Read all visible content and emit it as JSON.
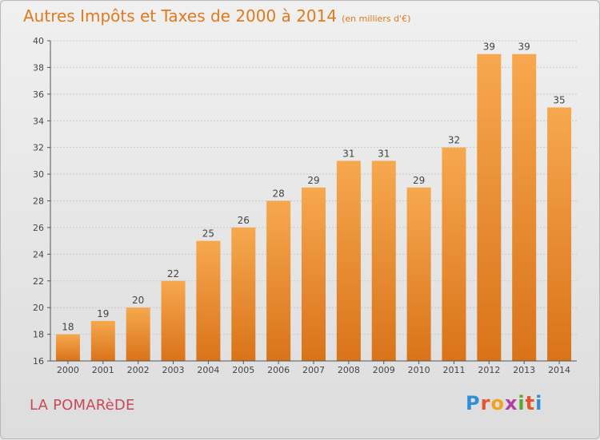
{
  "header": {
    "title": "Autres Impôts et Taxes de 2000 à 2014",
    "unit": "(en milliers d'€)"
  },
  "footer": {
    "city": "LA POMARèDE",
    "logo_text": "Proxiti"
  },
  "colors": {
    "bar_light": "#f7a84e",
    "bar_dark": "#d9731a",
    "title": "#e07a1c",
    "city": "#c84a5a"
  },
  "chart_data": {
    "type": "bar",
    "title": "Autres Impôts et Taxes de 2000 à 2014",
    "xlabel": "",
    "ylabel": "",
    "categories": [
      "2000",
      "2001",
      "2002",
      "2003",
      "2004",
      "2005",
      "2006",
      "2007",
      "2008",
      "2009",
      "2010",
      "2011",
      "2012",
      "2013",
      "2014"
    ],
    "values": [
      18,
      19,
      20,
      22,
      25,
      26,
      28,
      29,
      31,
      31,
      29,
      32,
      39,
      39,
      35
    ],
    "ylim": [
      16,
      40
    ],
    "yticks": [
      16,
      18,
      20,
      22,
      24,
      26,
      28,
      30,
      32,
      34,
      36,
      38,
      40
    ],
    "grid": true
  }
}
